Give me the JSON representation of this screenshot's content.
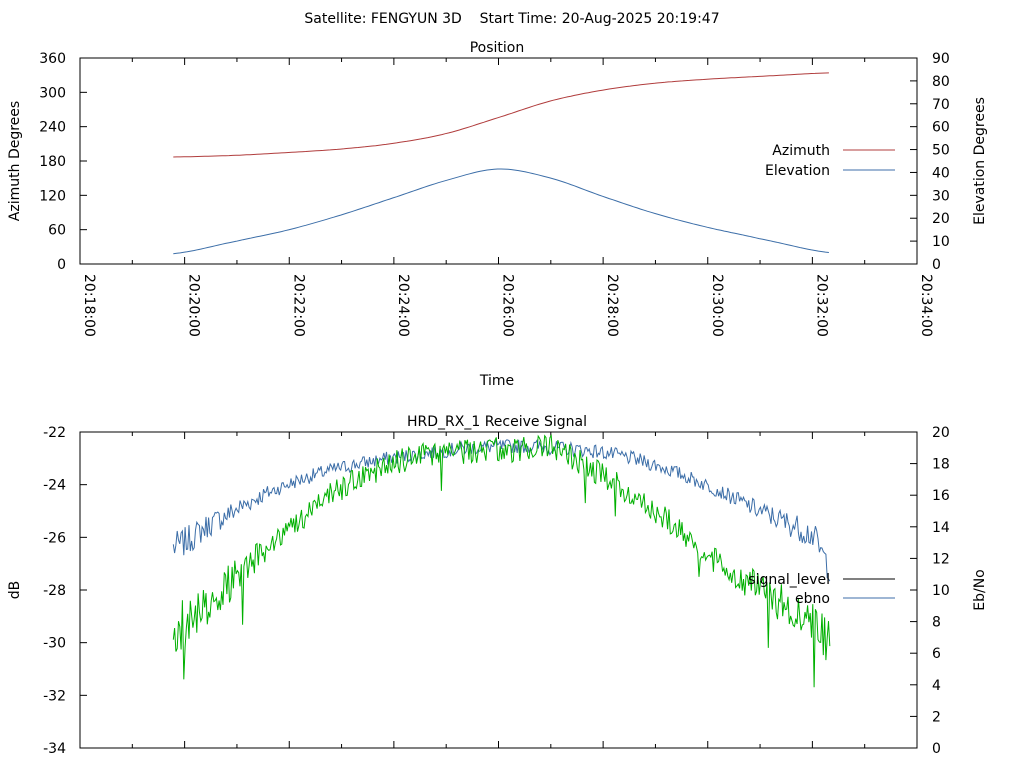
{
  "figure_title": "Satellite: FENGYUN 3D    Start Time: 20-Aug-2025 20:19:47",
  "colors": {
    "azimuth": "#b03c3c",
    "elevation": "#3c6ea8",
    "signal_level": "#000000",
    "ebno_line": "#3c6ea8",
    "ebno_green": "#00b000"
  },
  "chart_data": [
    {
      "type": "line",
      "title": "Position",
      "xlabel": "Time",
      "ylabel": "Azimuth Degrees",
      "y2label": "Elevation Degrees",
      "x_ticks": [
        "20:18:00",
        "20:20:00",
        "20:22:00",
        "20:24:00",
        "20:26:00",
        "20:28:00",
        "20:30:00",
        "20:32:00",
        "20:34:00"
      ],
      "xlim": [
        "20:18:00",
        "20:34:00"
      ],
      "ylim": [
        0,
        360
      ],
      "y_ticks": [
        "0",
        "60",
        "120",
        "180",
        "240",
        "300",
        "360"
      ],
      "y2lim": [
        0,
        90
      ],
      "y2_ticks": [
        "0",
        "10",
        "20",
        "30",
        "40",
        "50",
        "60",
        "70",
        "80",
        "90"
      ],
      "legend_position": "right",
      "series": [
        {
          "name": "Azimuth",
          "axis": "y",
          "x": [
            "20:19:47",
            "20:21:00",
            "20:22:00",
            "20:23:00",
            "20:24:00",
            "20:25:00",
            "20:26:00",
            "20:27:00",
            "20:28:00",
            "20:29:00",
            "20:30:00",
            "20:31:00",
            "20:32:20"
          ],
          "values": [
            187,
            190,
            195,
            201,
            211,
            228,
            256,
            285,
            304,
            316,
            323,
            328,
            334
          ]
        },
        {
          "name": "Elevation",
          "axis": "y2",
          "x": [
            "20:19:47",
            "20:21:00",
            "20:22:00",
            "20:23:00",
            "20:24:00",
            "20:25:00",
            "20:26:00",
            "20:27:00",
            "20:28:00",
            "20:29:00",
            "20:30:00",
            "20:31:00",
            "20:32:20"
          ],
          "values": [
            4.5,
            10,
            15,
            21.5,
            29,
            36.5,
            41.5,
            37.5,
            29.5,
            22,
            16,
            11,
            5
          ]
        }
      ]
    },
    {
      "type": "line",
      "title": "HRD_RX_1 Receive Signal",
      "ylabel": "dB",
      "y2label": "Eb/No",
      "ylim": [
        -34,
        -22
      ],
      "y_ticks": [
        "-22",
        "-24",
        "-26",
        "-28",
        "-30",
        "-32",
        "-34"
      ],
      "y2lim": [
        0,
        20
      ],
      "y2_ticks": [
        "0",
        "2",
        "4",
        "6",
        "8",
        "10",
        "12",
        "14",
        "16",
        "18",
        "20"
      ],
      "xlim": [
        "20:18:00",
        "20:34:00"
      ],
      "legend_position": "right",
      "legend": [
        {
          "name": "signal_level",
          "color": "#000000"
        },
        {
          "name": "ebno",
          "color": "#3c6ea8"
        }
      ],
      "series": [
        {
          "name": "ebno",
          "color": "#3c6ea8",
          "axis": "y2",
          "x": [
            "20:19:47",
            "20:20:30",
            "20:21:30",
            "20:22:30",
            "20:23:30",
            "20:24:30",
            "20:25:30",
            "20:26:30",
            "20:27:00",
            "20:28:00",
            "20:29:00",
            "20:30:00",
            "20:31:00",
            "20:32:00",
            "20:32:20"
          ],
          "values": [
            12.7,
            14.2,
            16.0,
            17.3,
            18.1,
            18.6,
            19.0,
            19.1,
            19.0,
            18.7,
            17.9,
            16.6,
            15.0,
            13.5,
            11.5
          ]
        },
        {
          "color": "#00b000",
          "axis": "y2",
          "x": [
            "20:19:47",
            "20:20:30",
            "20:21:30",
            "20:22:30",
            "20:23:30",
            "20:24:30",
            "20:25:30",
            "20:26:30",
            "20:27:00",
            "20:28:00",
            "20:29:00",
            "20:30:00",
            "20:31:00",
            "20:32:00",
            "20:32:20"
          ],
          "values": [
            7.5,
            9.5,
            12.3,
            15.3,
            17.3,
            18.5,
            18.8,
            18.9,
            19.0,
            17.2,
            15.0,
            12.2,
            10.0,
            8.0,
            6.5
          ]
        }
      ]
    }
  ]
}
